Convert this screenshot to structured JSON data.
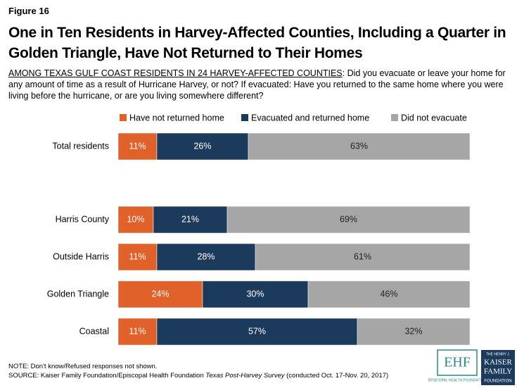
{
  "figure_label": "Figure 16",
  "title": "One in Ten Residents in Harvey-Affected Counties, Including a Quarter in Golden Triangle, Have Not Returned to Their Homes",
  "subtitle_lead": "AMONG TEXAS GULF COAST RESIDENTS IN 24 HARVEY-AFFECTED COUNTIES",
  "subtitle": ": Did you evacuate or leave your home for any amount of time as a result of Hurricane Harvey, or not? If evacuated: Have you returned to the same home where you were living before the hurricane, or are you living somewhere different?",
  "chart_data": {
    "type": "stacked_bar_horizontal",
    "categories": [
      "Total residents",
      "Harris County",
      "Outside Harris",
      "Golden Triangle",
      "Coastal"
    ],
    "xlim": [
      0,
      100
    ],
    "legend": "top",
    "series": [
      {
        "name": "Have not returned home",
        "color": "#e0622a",
        "values": [
          11,
          10,
          11,
          24,
          11
        ],
        "value_labels": [
          "11%",
          "10%",
          "11%",
          "24%",
          "11%"
        ]
      },
      {
        "name": "Evacuated and returned home",
        "color": "#1b3a5c",
        "values": [
          26,
          21,
          28,
          30,
          57
        ],
        "value_labels": [
          "26%",
          "21%",
          "28%",
          "30%",
          "57%"
        ]
      },
      {
        "name": "Did not evacuate",
        "color": "#a6a6a6",
        "values": [
          63,
          69,
          61,
          46,
          32
        ],
        "value_labels": [
          "63%",
          "69%",
          "61%",
          "46%",
          "32%"
        ]
      }
    ]
  },
  "note": "NOTE: Don't know/Refused responses not shown.",
  "source": {
    "before": "SOURCE: Kaiser Family Foundation/Episcopal Health Foundation ",
    "italic": "Texas Post-Harvey Survey",
    "after": " (conducted Oct. 17-Nov. 20, 2017)"
  },
  "logos": {
    "ehf_mark": "EHF",
    "ehf_name": "EPISCOPAL HEALTH FOUNDATION",
    "kff": [
      "THE HENRY J.",
      "KAISER",
      "FAMILY",
      "FOUNDATION"
    ]
  }
}
